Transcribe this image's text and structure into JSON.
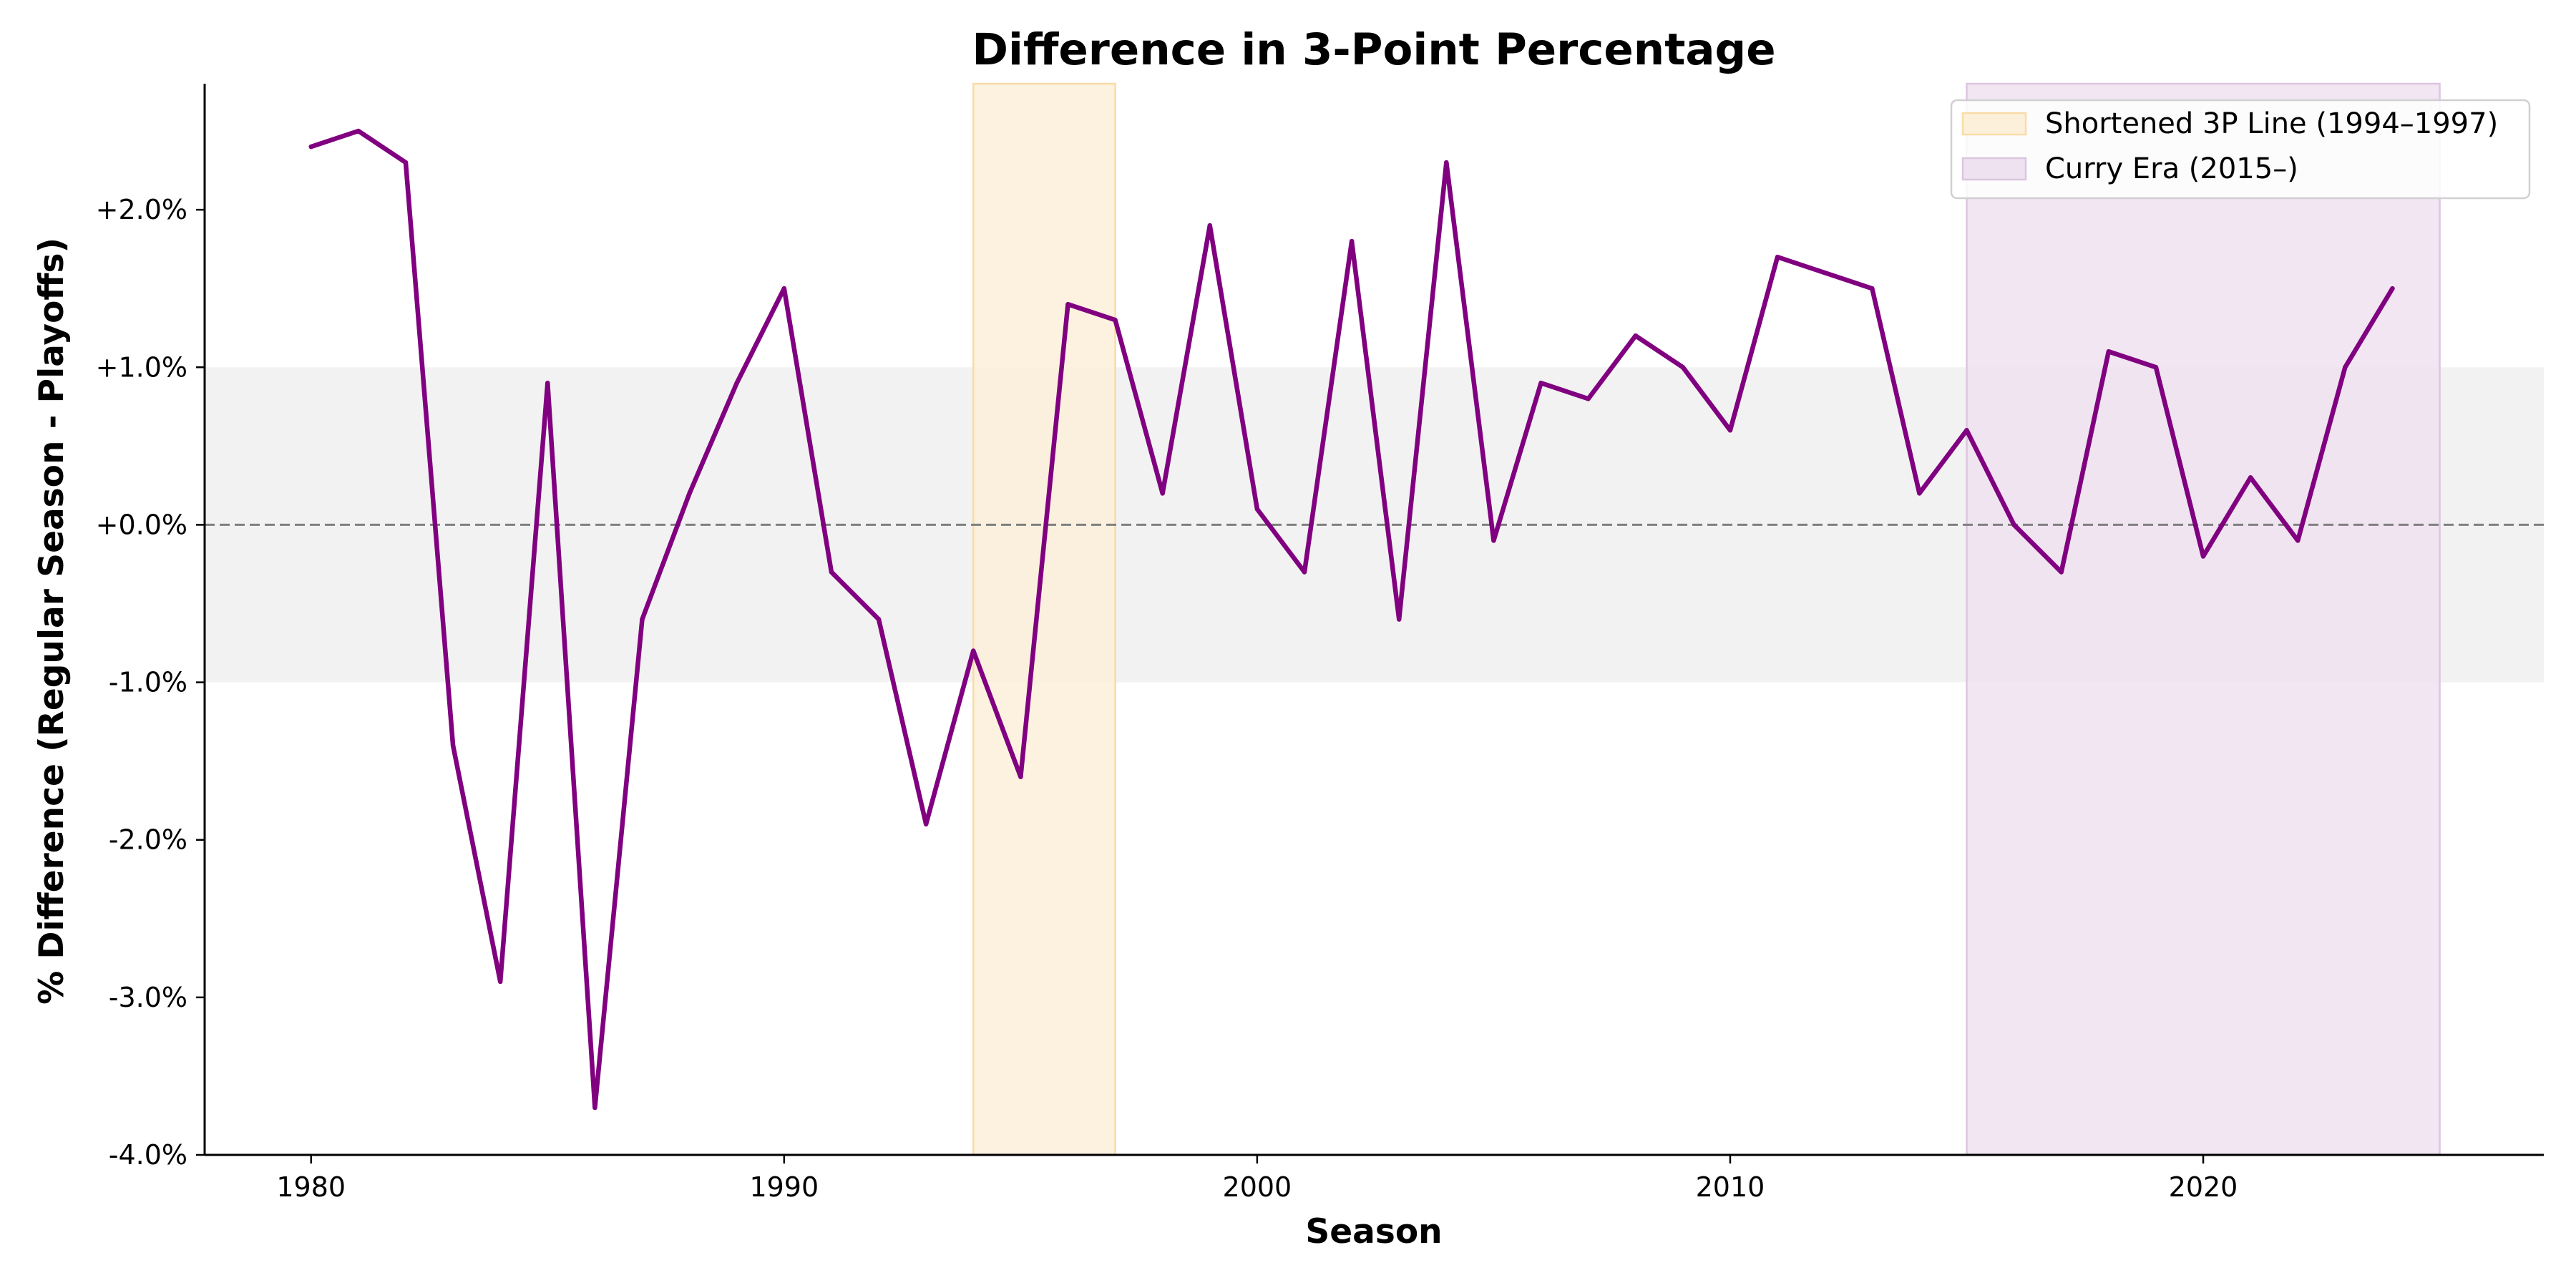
{
  "chart_data": {
    "type": "line",
    "title": "Difference in 3-Point Percentage",
    "xlabel": "Season",
    "ylabel": "% Difference (Regular Season - Playoffs)",
    "xlim": [
      1977.75,
      2027.2
    ],
    "ylim": [
      -4.0,
      2.8
    ],
    "x_ticks": [
      1980,
      1990,
      2000,
      2010,
      2020
    ],
    "y_ticks": [
      -4,
      -3,
      -2,
      -1,
      0,
      1,
      2
    ],
    "y_tick_labels": [
      "-4.0%",
      "-3.0%",
      "-2.0%",
      "-1.0%",
      "+0.0%",
      "+1.0%",
      "+2.0%"
    ],
    "x_tick_labels": [
      "1980",
      "1990",
      "2000",
      "2010",
      "2020"
    ],
    "grid": false,
    "legend_position": "top-right",
    "reference_line": {
      "y": 0,
      "style": "dashed",
      "color": "#7f7f7f"
    },
    "neutral_band": {
      "y_from": -1,
      "y_to": 1,
      "color": "#f2f2f2"
    },
    "shaded_regions": [
      {
        "label": "Shortened 3P Line (1994–1997)",
        "x_from": 1994,
        "x_to": 1997,
        "color": "#fdf0da",
        "edge": "#f8dca6"
      },
      {
        "label": "Curry Era (2015–)",
        "x_from": 2015,
        "x_to": 2025,
        "color": "#eee2f0",
        "edge": "#dcc5e0"
      }
    ],
    "series": [
      {
        "color": "#800080",
        "x": [
          1980,
          1981,
          1982,
          1983,
          1984,
          1985,
          1986,
          1987,
          1988,
          1989,
          1990,
          1991,
          1992,
          1993,
          1994,
          1995,
          1996,
          1997,
          1998,
          1999,
          2000,
          2001,
          2002,
          2003,
          2004,
          2005,
          2006,
          2007,
          2008,
          2009,
          2010,
          2011,
          2012,
          2013,
          2014,
          2015,
          2016,
          2017,
          2018,
          2019,
          2020,
          2021,
          2022,
          2023,
          2024
        ],
        "values": [
          2.4,
          2.5,
          2.3,
          -1.4,
          -2.9,
          0.9,
          -3.7,
          -0.6,
          0.2,
          0.9,
          1.5,
          -0.3,
          -0.6,
          -1.9,
          -0.8,
          -1.6,
          1.4,
          1.3,
          0.2,
          1.9,
          0.1,
          -0.3,
          1.8,
          -0.6,
          2.3,
          -0.1,
          0.9,
          0.8,
          1.2,
          1.0,
          0.6,
          1.7,
          1.6,
          1.5,
          0.2,
          0.6,
          0.0,
          -0.3,
          1.1,
          1.0,
          -0.2,
          0.3,
          -0.1,
          1.0,
          1.5
        ]
      }
    ]
  }
}
